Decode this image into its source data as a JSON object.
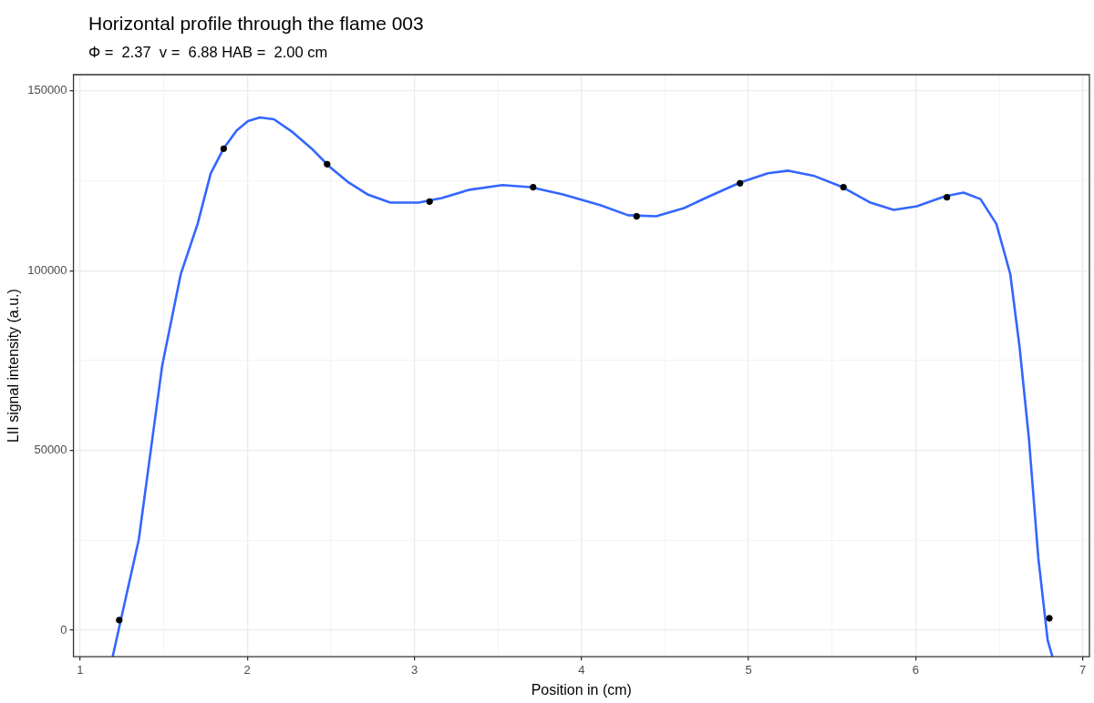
{
  "chart_data": {
    "type": "line",
    "title": "Horizontal profile through the flame 003",
    "subtitle": "Φ =  2.37  v =  6.88 HAB =  2.00 cm",
    "xlabel": "Position in (cm)",
    "ylabel": "LII signal intensity (a.u.)",
    "xlim": [
      0.96,
      7.04
    ],
    "ylim": [
      -7400,
      154500
    ],
    "xticks": [
      1,
      {
        "value": 1.5,
        "label": null
      },
      2,
      {
        "value": 2.5,
        "label": null
      },
      3,
      {
        "value": 3.5,
        "label": null
      },
      4,
      {
        "value": 4.5,
        "label": null
      },
      5,
      {
        "value": 5.5,
        "label": null
      },
      6,
      {
        "value": 6.5,
        "label": null
      },
      7
    ],
    "yticks": [
      0,
      {
        "value": 25000,
        "label": null
      },
      50000,
      {
        "value": 75000,
        "label": null
      },
      100000,
      {
        "value": 125000,
        "label": null
      },
      150000
    ],
    "grid": true,
    "legend": false,
    "series": [
      {
        "color": "#3366ff",
        "marker": "none",
        "line_style": "solid",
        "x": [
          1.195,
          1.351,
          1.491,
          1.602,
          1.703,
          1.781,
          1.859,
          1.937,
          2.004,
          2.076,
          2.16,
          2.272,
          2.384,
          2.495,
          2.607,
          2.719,
          2.857,
          3.025,
          3.164,
          3.331,
          3.527,
          3.694,
          3.889,
          4.112,
          4.279,
          4.447,
          4.614,
          4.781,
          4.949,
          5.116,
          5.239,
          5.395,
          5.563,
          5.73,
          5.869,
          6.008,
          6.176,
          6.287,
          6.388,
          6.483,
          6.566,
          6.622,
          6.678,
          6.734,
          6.79,
          6.818
        ],
        "values": [
          -7300,
          25200,
          73600,
          99000,
          113000,
          127000,
          134000,
          139000,
          141600,
          142600,
          142100,
          138500,
          134000,
          128800,
          124500,
          121200,
          118900,
          118900,
          120200,
          122500,
          123800,
          123200,
          121200,
          118200,
          115400,
          115100,
          117400,
          121000,
          124500,
          127100,
          127800,
          126300,
          123200,
          118900,
          116900,
          117900,
          120700,
          121700,
          119900,
          113000,
          99100,
          78700,
          53200,
          20100,
          -2800,
          -7300
        ]
      },
      {
        "type": "scatter",
        "color": "#000000",
        "marker": "circle",
        "x": [
          1.234,
          1.859,
          2.478,
          3.091,
          3.711,
          4.33,
          4.949,
          5.568,
          6.187,
          6.8
        ],
        "values": [
          2800,
          133900,
          129600,
          119200,
          123200,
          115100,
          124300,
          123200,
          120400,
          3300
        ]
      }
    ]
  }
}
